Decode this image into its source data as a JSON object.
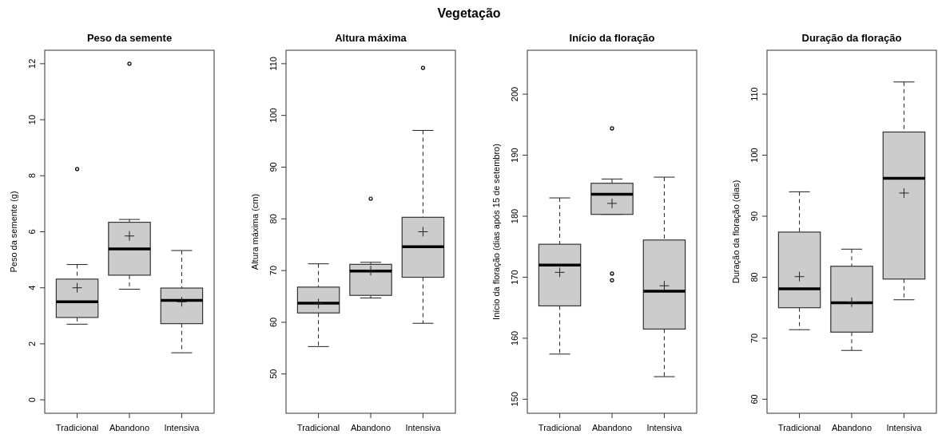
{
  "chart_data": [
    {
      "type": "other",
      "title": "Vegetação"
    },
    {
      "type": "box",
      "title": "Peso da semente",
      "ylabel": "Peso da semente (g)",
      "categories": [
        "Tradicional",
        "Abandono",
        "Intensiva"
      ],
      "ylim": [
        -0.48,
        12.48
      ],
      "yticks": [
        0,
        2,
        4,
        6,
        8,
        10,
        12
      ],
      "boxes": [
        {
          "low": 2.7,
          "q1": 2.94,
          "median": 3.5,
          "q3": 4.31,
          "high": 4.83,
          "mean": 4.0,
          "outliers": [
            8.24
          ]
        },
        {
          "low": 3.95,
          "q1": 4.45,
          "median": 5.39,
          "q3": 6.34,
          "high": 6.44,
          "mean": 5.85,
          "outliers": [
            12.0
          ]
        },
        {
          "low": 1.68,
          "q1": 2.72,
          "median": 3.55,
          "q3": 3.99,
          "high": 5.33,
          "mean": 3.5
        }
      ]
    },
    {
      "type": "box",
      "title": "Altura máxima",
      "ylabel": "Altura máxima (cm)",
      "categories": [
        "Tradicional",
        "Abandono",
        "Intensiva"
      ],
      "ylim": [
        42.4,
        112.6
      ],
      "yticks": [
        50,
        60,
        70,
        80,
        90,
        100,
        110
      ],
      "boxes": [
        {
          "low": 55.3,
          "q1": 61.8,
          "median": 63.7,
          "q3": 66.8,
          "high": 71.3,
          "mean": 63.6
        },
        {
          "low": 64.7,
          "q1": 65.2,
          "median": 69.9,
          "q3": 71.2,
          "high": 71.6,
          "mean": 70.0,
          "outliers": [
            83.9
          ]
        },
        {
          "low": 59.8,
          "q1": 68.7,
          "median": 74.6,
          "q3": 80.3,
          "high": 97.1,
          "mean": 77.5,
          "outliers": [
            109.2
          ]
        }
      ]
    },
    {
      "type": "box",
      "title": "Início da floração",
      "ylabel": "Início da floração (dias após 15 de setembro)",
      "categories": [
        "Tradicional",
        "Abandono",
        "Intensiva"
      ],
      "ylim": [
        147.7,
        207.2
      ],
      "yticks": [
        150,
        160,
        170,
        180,
        190,
        200
      ],
      "boxes": [
        {
          "low": 157.4,
          "q1": 165.3,
          "median": 172.0,
          "q3": 175.4,
          "high": 183.0,
          "mean": 170.8
        },
        {
          "low": 180.3,
          "q1": 180.3,
          "median": 183.6,
          "q3": 185.4,
          "high": 186.1,
          "mean": 182.1,
          "outliers": [
            194.4,
            170.6,
            169.5
          ]
        },
        {
          "low": 153.7,
          "q1": 161.5,
          "median": 167.7,
          "q3": 176.1,
          "high": 186.4,
          "mean": 168.6
        }
      ]
    },
    {
      "type": "box",
      "title": "Duração da floração",
      "ylabel": "Duração da floração (dias)",
      "categories": [
        "Tradicional",
        "Abandono",
        "Intensiva"
      ],
      "ylim": [
        57.7,
        117.2
      ],
      "yticks": [
        60,
        70,
        80,
        90,
        100,
        110
      ],
      "boxes": [
        {
          "low": 71.4,
          "q1": 75.0,
          "median": 78.1,
          "q3": 87.4,
          "high": 94.0,
          "mean": 80.1
        },
        {
          "low": 68.0,
          "q1": 71.0,
          "median": 75.8,
          "q3": 81.8,
          "high": 84.6,
          "mean": 75.9
        },
        {
          "low": 76.3,
          "q1": 79.7,
          "median": 96.2,
          "q3": 103.8,
          "high": 112.0,
          "mean": 93.8
        }
      ]
    }
  ]
}
